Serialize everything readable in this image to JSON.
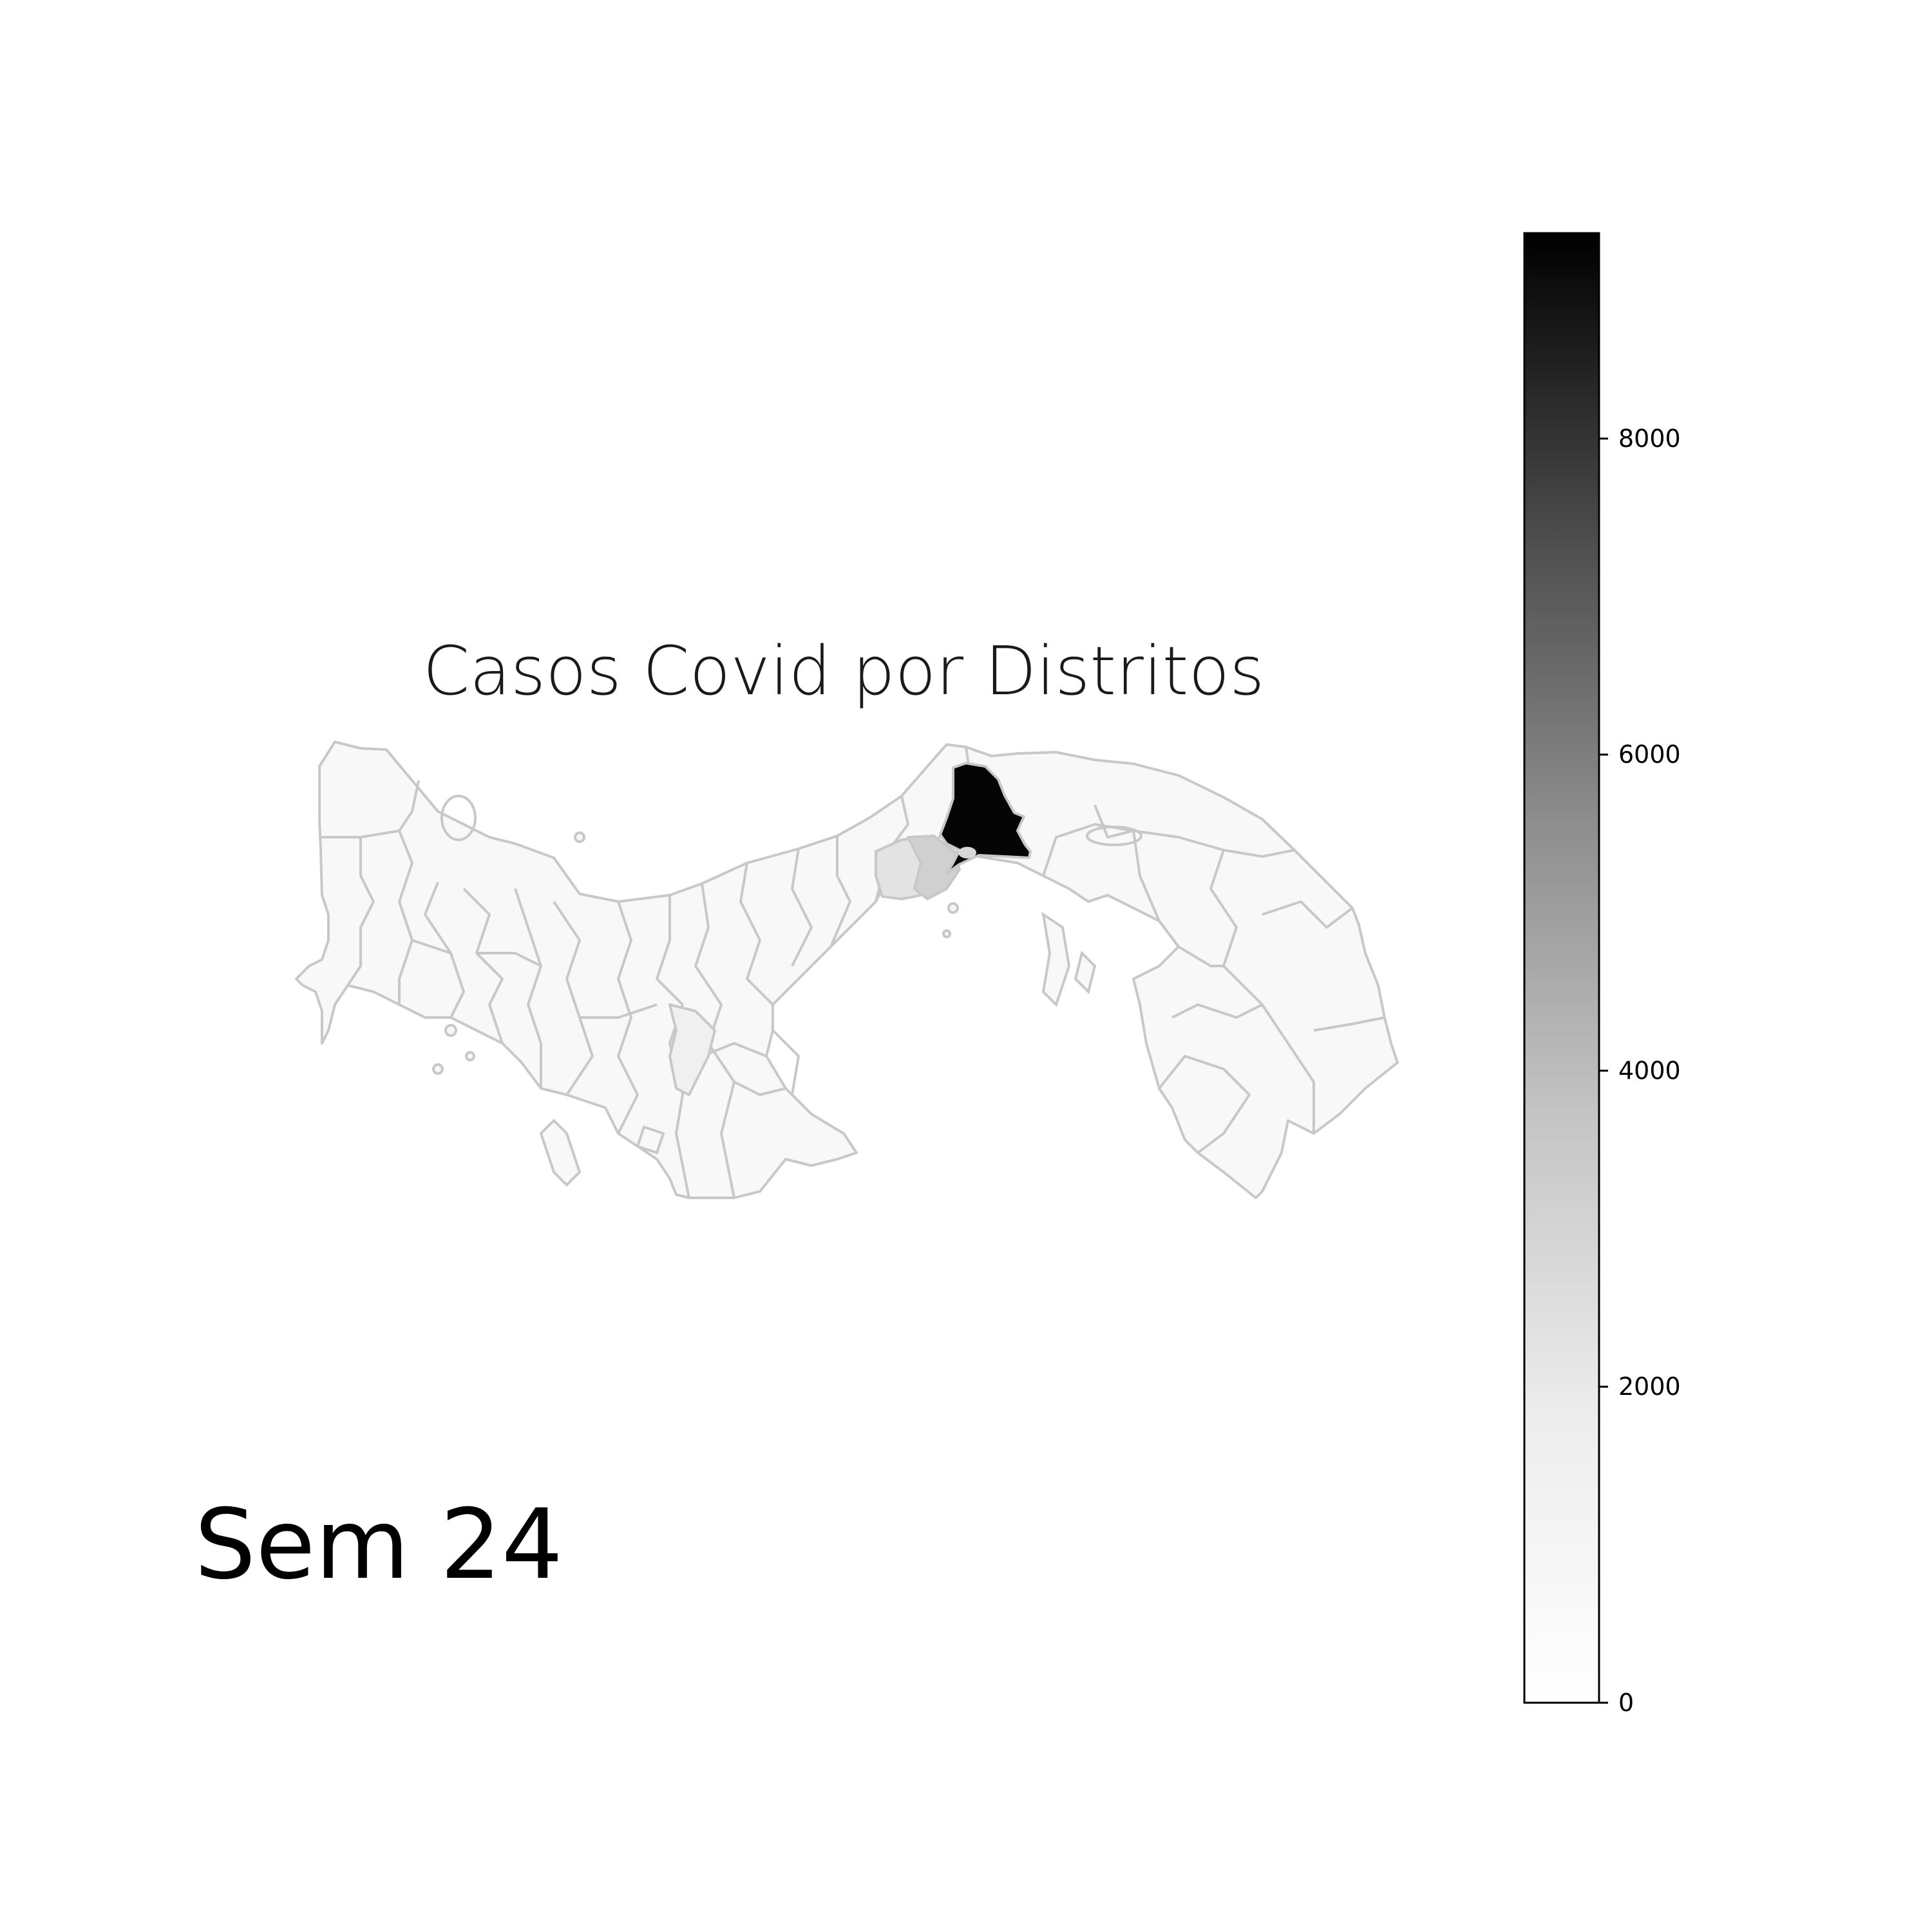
{
  "title": "Casos Covid por Distritos",
  "week_label": "Sem 24",
  "colorbar": {
    "min": 0,
    "max": 9300,
    "ticks": [
      0,
      2000,
      4000,
      6000,
      8000
    ],
    "colormap": "Greys",
    "color_low": "#ffffff",
    "color_high": "#000000"
  },
  "map_data": {
    "country": "Panama",
    "region_unit": "district",
    "highlighted_regions": [
      {
        "description": "darkest district near Panama City",
        "approx_cases": 9300,
        "color": "#050505"
      },
      {
        "description": "adjacent district west of the canal",
        "approx_cases": 2300,
        "color": "#d0d0d0"
      },
      {
        "description": "district west of canal (Arraiján area)",
        "approx_cases": 1300,
        "color": "#e3e3e3"
      },
      {
        "description": "district in Azuero / Herrera area",
        "approx_cases": 500,
        "color": "#f0f0f0"
      }
    ],
    "default_color": "#f7f7f7",
    "border_color": "#c8c8c8"
  }
}
